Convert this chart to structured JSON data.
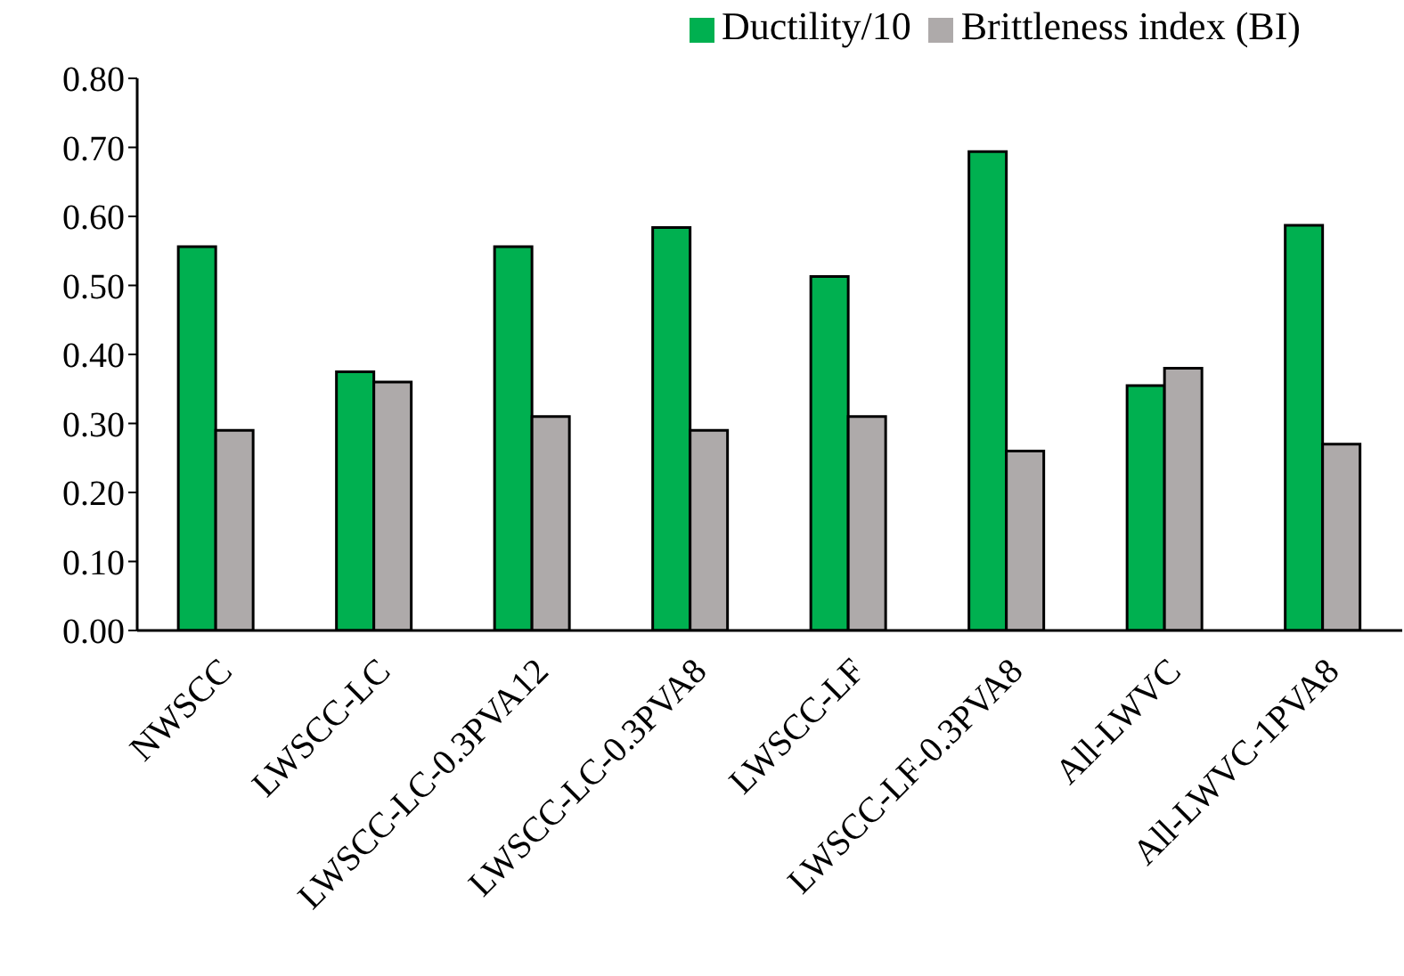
{
  "chart_data": {
    "type": "bar",
    "categories": [
      "NWSCC",
      "LWSCC-LC",
      "LWSCC-LC-0.3PVA12",
      "LWSCC-LC-0.3PVA8",
      "LWSCC-LF",
      "LWSCC-LF-0.3PVA8",
      "All-LWVC",
      "All-LWVC-1PVA8"
    ],
    "series": [
      {
        "name": "Ductility/10",
        "color": "#00b050",
        "values": [
          0.556,
          0.375,
          0.556,
          0.584,
          0.513,
          0.694,
          0.355,
          0.587
        ]
      },
      {
        "name": "Brittleness index (BI)",
        "color": "#aeaaaa",
        "values": [
          0.29,
          0.36,
          0.31,
          0.29,
          0.31,
          0.26,
          0.38,
          0.27
        ]
      }
    ],
    "ylim": [
      0,
      0.8
    ],
    "yticks": [
      {
        "value": 0,
        "label": "0.00"
      },
      {
        "value": 0.1,
        "label": "0.10"
      },
      {
        "value": 0.2,
        "label": "0.20"
      },
      {
        "value": 0.3,
        "label": "0.30"
      },
      {
        "value": 0.4,
        "label": "0.40"
      },
      {
        "value": 0.5,
        "label": "0.50"
      },
      {
        "value": 0.6,
        "label": "0.60"
      },
      {
        "value": 0.7,
        "label": "0.70"
      },
      {
        "value": 0.8,
        "label": "0.80"
      }
    ],
    "grid": false,
    "legend": "top"
  }
}
